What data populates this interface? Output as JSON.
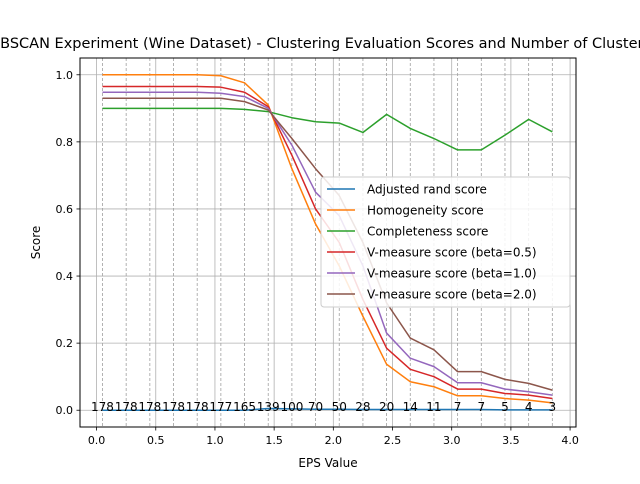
{
  "chart_data": {
    "type": "line",
    "title": "DBSCAN Experiment (Wine Dataset) - Clustering Evaluation Scores and Number of Clusters",
    "xlabel": "EPS Value",
    "ylabel": "Score",
    "xlim": [
      -0.14,
      4.05
    ],
    "ylim": [
      -0.05,
      1.05
    ],
    "xticks": [
      "0.0",
      "0.5",
      "1.0",
      "1.5",
      "2.0",
      "2.5",
      "3.0",
      "3.5",
      "4.0"
    ],
    "yticks": [
      "0.0",
      "0.2",
      "0.4",
      "0.6",
      "0.8",
      "1.0"
    ],
    "grid": "on",
    "legend_position": "center-right",
    "x": [
      0.05,
      0.25,
      0.45,
      0.65,
      0.85,
      1.05,
      1.25,
      1.45,
      1.65,
      1.85,
      2.05,
      2.25,
      2.45,
      2.65,
      2.85,
      3.05,
      3.25,
      3.45,
      3.65,
      3.85
    ],
    "cluster_counts": [
      "178",
      "178",
      "178",
      "178",
      "178",
      "177",
      "165",
      "139",
      "100",
      "70",
      "50",
      "28",
      "20",
      "14",
      "11",
      "7",
      "7",
      "5",
      "4",
      "3"
    ],
    "series": [
      {
        "name": "Adjusted rand score",
        "color": "#1f77b4",
        "values": [
          0.0,
          0.0,
          0.0,
          0.0,
          0.0,
          0.0,
          0.0,
          0.005,
          0.004,
          0.003,
          0.003,
          0.002,
          0.002,
          0.002,
          0.002,
          0.002,
          0.002,
          0.001,
          0.001,
          0.001
        ]
      },
      {
        "name": "Homogeneity score",
        "color": "#ff7f0e",
        "values": [
          1.0,
          1.0,
          1.0,
          1.0,
          1.0,
          0.997,
          0.976,
          0.91,
          0.72,
          0.555,
          0.43,
          0.28,
          0.137,
          0.085,
          0.07,
          0.043,
          0.043,
          0.035,
          0.03,
          0.022
        ]
      },
      {
        "name": "Completeness score",
        "color": "#2ca02c",
        "values": [
          0.9,
          0.9,
          0.9,
          0.9,
          0.9,
          0.9,
          0.897,
          0.89,
          0.872,
          0.86,
          0.856,
          0.828,
          0.882,
          0.84,
          0.81,
          0.776,
          0.776,
          0.82,
          0.867,
          0.83
        ]
      },
      {
        "name": "V-measure score (beta=0.5)",
        "color": "#d62728",
        "values": [
          0.965,
          0.965,
          0.965,
          0.965,
          0.965,
          0.963,
          0.948,
          0.905,
          0.76,
          0.6,
          0.5,
          0.33,
          0.185,
          0.122,
          0.1,
          0.063,
          0.063,
          0.05,
          0.045,
          0.035
        ]
      },
      {
        "name": "V-measure score (beta=1.0)",
        "color": "#9467bd",
        "values": [
          0.948,
          0.948,
          0.948,
          0.948,
          0.948,
          0.945,
          0.935,
          0.9,
          0.79,
          0.65,
          0.58,
          0.43,
          0.23,
          0.155,
          0.13,
          0.082,
          0.082,
          0.063,
          0.055,
          0.045
        ]
      },
      {
        "name": "V-measure score (beta=2.0)",
        "color": "#8c564b",
        "values": [
          0.93,
          0.93,
          0.93,
          0.93,
          0.93,
          0.93,
          0.92,
          0.895,
          0.81,
          0.72,
          0.64,
          0.5,
          0.32,
          0.215,
          0.18,
          0.115,
          0.115,
          0.092,
          0.08,
          0.06
        ]
      }
    ]
  }
}
